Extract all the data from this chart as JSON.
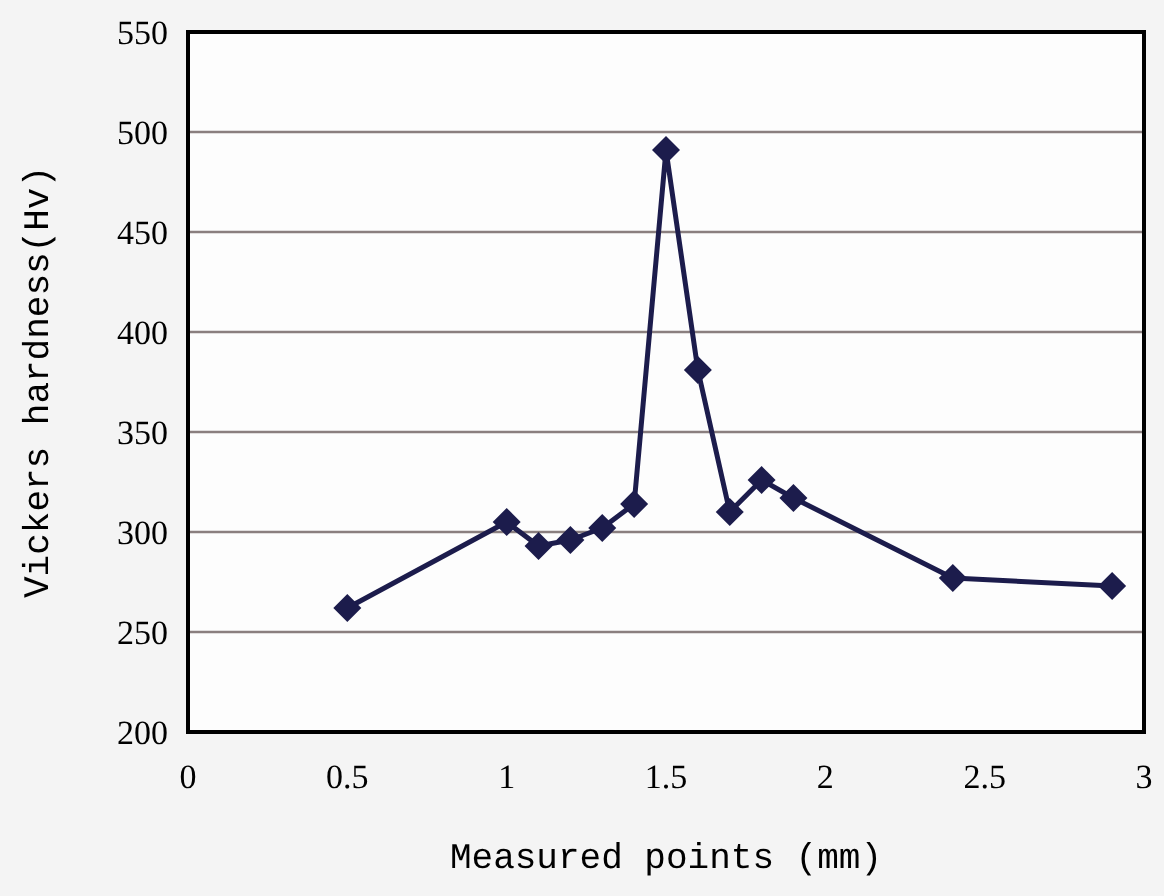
{
  "chart_data": {
    "type": "line",
    "xlabel": "Measured points (mm)",
    "ylabel": "Vickers hardness(Hv)",
    "x": [
      0.5,
      1.0,
      1.1,
      1.2,
      1.3,
      1.4,
      1.5,
      1.6,
      1.7,
      1.8,
      1.9,
      2.4,
      2.9
    ],
    "series": [
      {
        "color": "#1c1c4c",
        "values": [
          262,
          305,
          293,
          296,
          302,
          314,
          491,
          381,
          310,
          326,
          317,
          277,
          273
        ]
      }
    ],
    "xlim": [
      0,
      3
    ],
    "xticks": [
      0,
      0.5,
      1,
      1.5,
      2,
      2.5,
      3
    ],
    "ylim": [
      200,
      550
    ],
    "yticks": [
      200,
      250,
      300,
      350,
      400,
      450,
      500,
      550
    ],
    "grid": "y",
    "marker": "diamond",
    "line_style": "solid"
  }
}
